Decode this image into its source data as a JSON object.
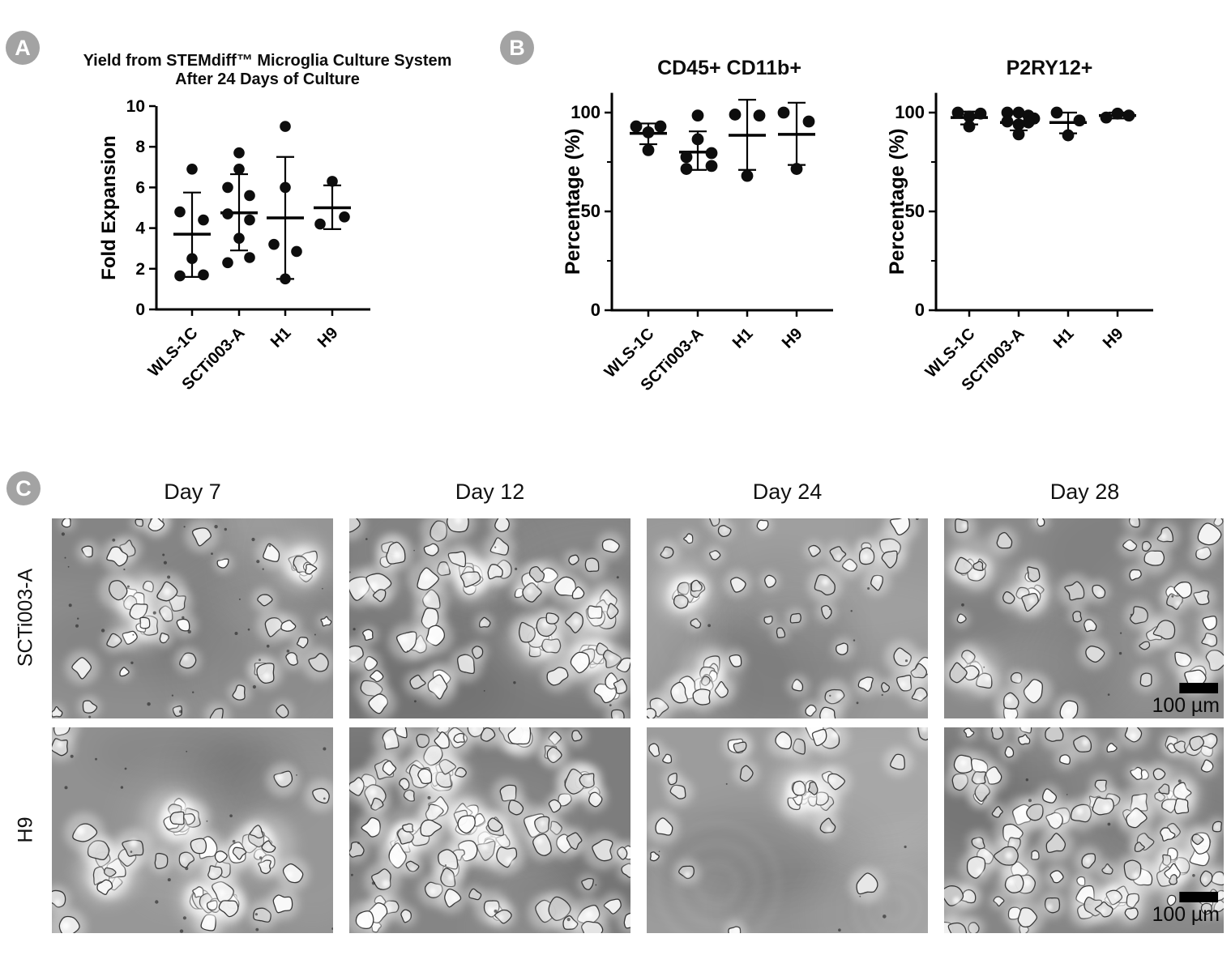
{
  "figure": {
    "background": "#ffffff",
    "badge_color": "#a3a3a3",
    "dot_color": "#0d0d0d"
  },
  "panels": {
    "a": {
      "label": "A"
    },
    "b": {
      "label": "B"
    },
    "c": {
      "label": "C",
      "column_headers": [
        "Day 7",
        "Day 12",
        "Day 24",
        "Day 28"
      ],
      "row_labels": [
        "SCTi003-A",
        "H9"
      ],
      "scale_bar_label": "100 µm",
      "images": [
        {
          "row_label": "SCTi003-A",
          "column_label": "Day 7",
          "scale_bar": false,
          "appearance": {
            "bg": "#8e8e8e",
            "cells": 38,
            "clusters": 3,
            "cluster_size": 4,
            "debris": 40,
            "min_r": 5,
            "max_r": 12
          }
        },
        {
          "row_label": "SCTi003-A",
          "column_label": "Day 12",
          "scale_bar": false,
          "appearance": {
            "bg": "#7b7b7b",
            "cells": 55,
            "clusters": 4,
            "cluster_size": 5,
            "debris": 12,
            "min_r": 6,
            "max_r": 13
          }
        },
        {
          "row_label": "SCTi003-A",
          "column_label": "Day 24",
          "scale_bar": false,
          "appearance": {
            "bg": "#999999",
            "cells": 45,
            "clusters": 2,
            "cluster_size": 5,
            "debris": 10,
            "min_r": 5,
            "max_r": 12
          }
        },
        {
          "row_label": "SCTi003-A",
          "column_label": "Day 28",
          "scale_bar": true,
          "appearance": {
            "bg": "#8a8a8a",
            "cells": 42,
            "clusters": 3,
            "cluster_size": 4,
            "debris": 8,
            "min_r": 5,
            "max_r": 12
          }
        },
        {
          "row_label": "H9",
          "column_label": "Day 7",
          "scale_bar": false,
          "appearance": {
            "bg": "#919191",
            "cells": 22,
            "clusters": 4,
            "cluster_size": 9,
            "debris": 22,
            "min_r": 6,
            "max_r": 13,
            "big_clusters": true
          }
        },
        {
          "row_label": "H9",
          "column_label": "Day 12",
          "scale_bar": false,
          "appearance": {
            "bg": "#7d7d7d",
            "cells": 90,
            "clusters": 4,
            "cluster_size": 6,
            "debris": 8,
            "min_r": 6,
            "max_r": 13
          }
        },
        {
          "row_label": "H9",
          "column_label": "Day 24",
          "scale_bar": false,
          "appearance": {
            "bg": "#9c9c9c",
            "cells": 22,
            "clusters": 2,
            "cluster_size": 6,
            "debris": 6,
            "min_r": 5,
            "max_r": 12,
            "rings": true
          }
        },
        {
          "row_label": "H9",
          "column_label": "Day 28",
          "scale_bar": true,
          "appearance": {
            "bg": "#868686",
            "cells": 95,
            "clusters": 3,
            "cluster_size": 6,
            "debris": 6,
            "min_r": 5,
            "max_r": 12
          }
        }
      ]
    }
  },
  "chart_data": [
    {
      "type": "scatter",
      "title": "Yield from STEMdiff™ Microglia Culture System",
      "subtitle": "After 24 Days of Culture",
      "xlabel": "",
      "ylabel": "Fold Expansion",
      "ylim": [
        0,
        10
      ],
      "yticks": [
        0,
        2,
        4,
        6,
        8,
        10
      ],
      "grid": false,
      "categories": [
        "WLS-1C",
        "SCTi003-A",
        "H1",
        "H9"
      ],
      "groups": [
        {
          "category": "WLS-1C",
          "mean": 3.7,
          "sd_low": 1.6,
          "sd_high": 5.75,
          "points": [
            {
              "v": 6.9,
              "dx": 0
            },
            {
              "v": 4.8,
              "dx": -15
            },
            {
              "v": 4.4,
              "dx": 14
            },
            {
              "v": 2.5,
              "dx": 0
            },
            {
              "v": 1.65,
              "dx": -15
            },
            {
              "v": 1.7,
              "dx": 14
            }
          ]
        },
        {
          "category": "SCTi003-A",
          "mean": 4.75,
          "sd_low": 2.9,
          "sd_high": 6.65,
          "points": [
            {
              "v": 7.7,
              "dx": 0
            },
            {
              "v": 6.9,
              "dx": 0
            },
            {
              "v": 6.0,
              "dx": -14
            },
            {
              "v": 5.6,
              "dx": 13
            },
            {
              "v": 4.7,
              "dx": -14
            },
            {
              "v": 4.4,
              "dx": 13
            },
            {
              "v": 3.5,
              "dx": 0
            },
            {
              "v": 2.3,
              "dx": -14
            },
            {
              "v": 2.55,
              "dx": 13
            }
          ]
        },
        {
          "category": "H1",
          "mean": 4.5,
          "sd_low": 1.5,
          "sd_high": 7.5,
          "points": [
            {
              "v": 9.0,
              "dx": 0
            },
            {
              "v": 6.0,
              "dx": 0
            },
            {
              "v": 3.2,
              "dx": -14
            },
            {
              "v": 2.85,
              "dx": 14
            },
            {
              "v": 1.5,
              "dx": 0
            }
          ]
        },
        {
          "category": "H9",
          "mean": 5.0,
          "sd_low": 3.95,
          "sd_high": 6.1,
          "points": [
            {
              "v": 6.3,
              "dx": 0
            },
            {
              "v": 4.2,
              "dx": -15
            },
            {
              "v": 4.55,
              "dx": 15
            }
          ]
        }
      ]
    },
    {
      "type": "scatter",
      "title": "CD45+ CD11b+",
      "xlabel": "",
      "ylabel": "Percentage (%)",
      "ylim": [
        0,
        110
      ],
      "yticks": [
        0,
        50,
        100
      ],
      "yticks_minor": [
        25,
        75
      ],
      "grid": false,
      "categories": [
        "WLS-1C",
        "SCTi003-A",
        "H1",
        "H9"
      ],
      "groups": [
        {
          "category": "WLS-1C",
          "mean": 89.5,
          "sd_low": 84,
          "sd_high": 94.5,
          "points": [
            {
              "v": 93,
              "dx": -15
            },
            {
              "v": 93,
              "dx": 15
            },
            {
              "v": 90,
              "dx": 0
            },
            {
              "v": 81,
              "dx": 0
            }
          ]
        },
        {
          "category": "SCTi003-A",
          "mean": 80,
          "sd_low": 71,
          "sd_high": 90.5,
          "points": [
            {
              "v": 98.5,
              "dx": 0
            },
            {
              "v": 86.5,
              "dx": 0
            },
            {
              "v": 79.5,
              "dx": 17
            },
            {
              "v": 77.5,
              "dx": -14
            },
            {
              "v": 73,
              "dx": 17
            },
            {
              "v": 71.5,
              "dx": -14
            }
          ]
        },
        {
          "category": "H1",
          "mean": 88.5,
          "sd_low": 71,
          "sd_high": 106.5,
          "points": [
            {
              "v": 99,
              "dx": -15
            },
            {
              "v": 98.5,
              "dx": 15
            },
            {
              "v": 68,
              "dx": 0
            }
          ]
        },
        {
          "category": "H9",
          "mean": 89,
          "sd_low": 73.5,
          "sd_high": 105,
          "points": [
            {
              "v": 100,
              "dx": -16
            },
            {
              "v": 95.5,
              "dx": 15
            },
            {
              "v": 71.5,
              "dx": 0
            }
          ]
        }
      ]
    },
    {
      "type": "scatter",
      "title": "P2RY12+",
      "xlabel": "",
      "ylabel": "Percentage (%)",
      "ylim": [
        0,
        110
      ],
      "yticks": [
        0,
        50,
        100
      ],
      "yticks_minor": [
        25,
        75
      ],
      "grid": false,
      "categories": [
        "WLS-1C",
        "SCTi003-A",
        "H1",
        "H9"
      ],
      "groups": [
        {
          "category": "WLS-1C",
          "mean": 97.5,
          "sd_low": 94,
          "sd_high": 100.5,
          "points": [
            {
              "v": 100,
              "dx": -14
            },
            {
              "v": 99.5,
              "dx": 14
            },
            {
              "v": 98,
              "dx": 0
            },
            {
              "v": 93,
              "dx": 0
            }
          ]
        },
        {
          "category": "SCTi003-A",
          "mean": 95,
          "sd_low": 91,
          "sd_high": 99.5,
          "points": [
            {
              "v": 100,
              "dx": -14
            },
            {
              "v": 100,
              "dx": 0
            },
            {
              "v": 98.5,
              "dx": 12
            },
            {
              "v": 97,
              "dx": 19
            },
            {
              "v": 95.5,
              "dx": -14
            },
            {
              "v": 95,
              "dx": 12
            },
            {
              "v": 94,
              "dx": 0
            },
            {
              "v": 89,
              "dx": 0
            }
          ]
        },
        {
          "category": "H1",
          "mean": 95,
          "sd_low": 89.5,
          "sd_high": 100,
          "points": [
            {
              "v": 100,
              "dx": -14
            },
            {
              "v": 96,
              "dx": 14
            },
            {
              "v": 88.5,
              "dx": 0
            }
          ]
        },
        {
          "category": "H9",
          "mean": 98.5,
          "sd_low": 97,
          "sd_high": 100,
          "points": [
            {
              "v": 97.5,
              "dx": -14
            },
            {
              "v": 99.5,
              "dx": 0
            },
            {
              "v": 98.5,
              "dx": 14
            }
          ]
        }
      ]
    }
  ]
}
